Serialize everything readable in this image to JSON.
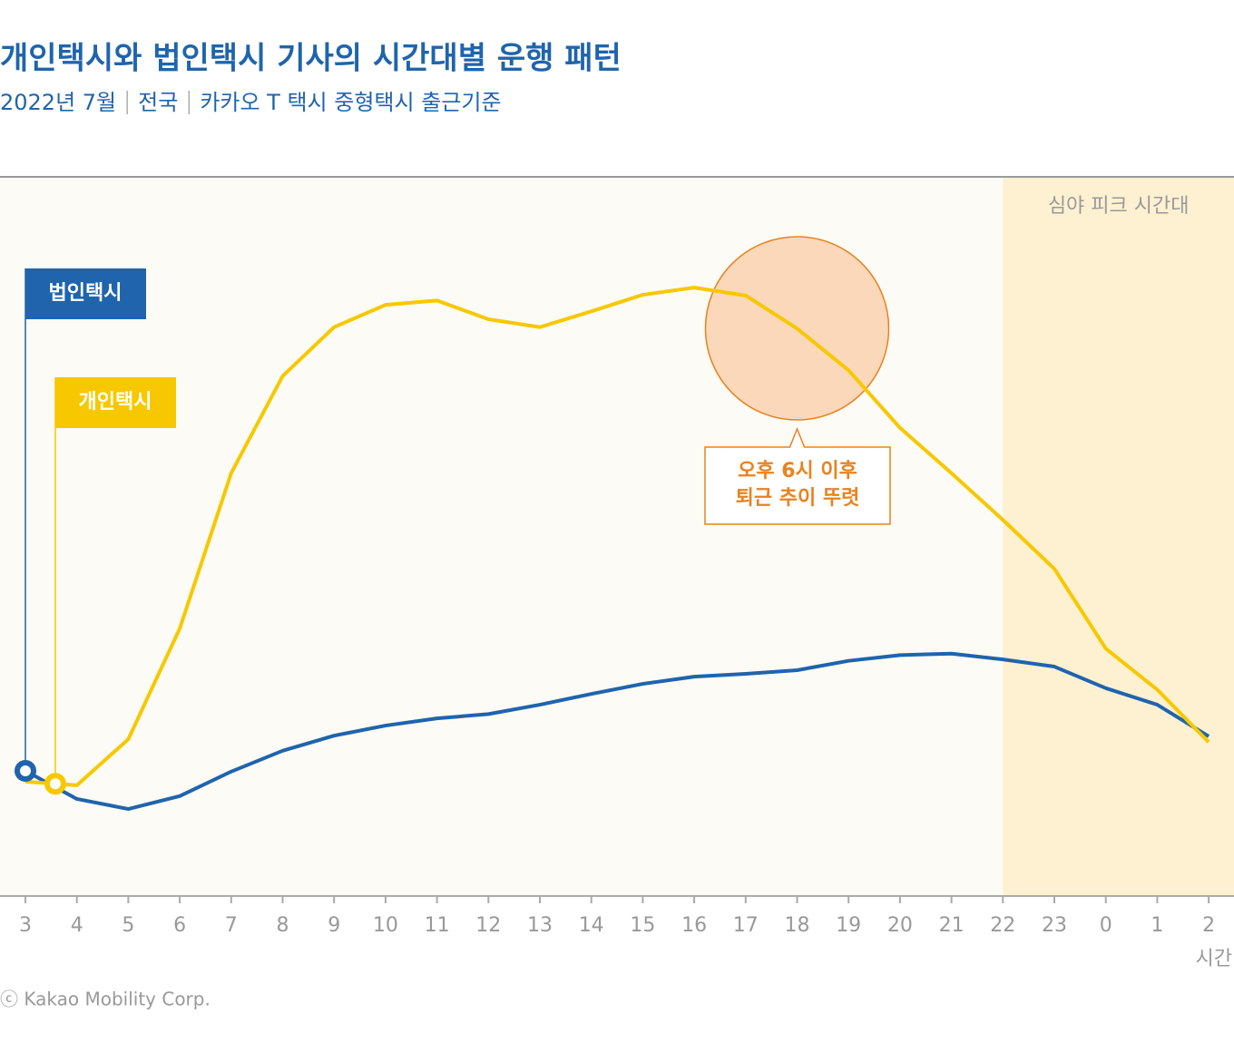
{
  "chart_data": {
    "type": "line",
    "title": "개인택시와 법인택시 기사의 시간대별 운행 패턴",
    "subtitle": [
      "2022년 7월",
      "전국",
      "카카오 T 택시 중형택시 출근기준"
    ],
    "categories": [
      "3",
      "4",
      "5",
      "6",
      "7",
      "8",
      "9",
      "10",
      "11",
      "12",
      "13",
      "14",
      "15",
      "16",
      "17",
      "18",
      "19",
      "20",
      "21",
      "22",
      "23",
      "0",
      "1",
      "2"
    ],
    "x_label": "시간",
    "series": [
      {
        "name": "법인택시",
        "color": "#1f64ad",
        "values": [
          17.4,
          13.5,
          12.1,
          13.9,
          17.3,
          20.2,
          22.3,
          23.7,
          24.7,
          25.3,
          26.6,
          28.1,
          29.5,
          30.5,
          30.9,
          31.4,
          32.7,
          33.5,
          33.7,
          32.9,
          31.9,
          28.9,
          26.6,
          22.2
        ]
      },
      {
        "name": "개인택시",
        "color": "#f7c800",
        "values": [
          15.9,
          15.4,
          21.8,
          37.2,
          58.8,
          72.3,
          79.1,
          82.2,
          82.8,
          80.2,
          79.1,
          81.3,
          83.6,
          84.6,
          83.5,
          78.9,
          73.1,
          65.1,
          58.8,
          52.3,
          45.5,
          34.4,
          28.7,
          21.4
        ]
      }
    ],
    "ylim": [
      0,
      100
    ],
    "highlight": {
      "label": "심야 피크 시간대",
      "from": "22",
      "color": "#fdf1d2"
    },
    "annotation": {
      "lines": [
        "오후 6시 이후",
        "퇴근 추이 뚜렷"
      ],
      "at": "18",
      "color": "#e8821e"
    },
    "source": "ⓒ Kakao Mobility Corp."
  }
}
